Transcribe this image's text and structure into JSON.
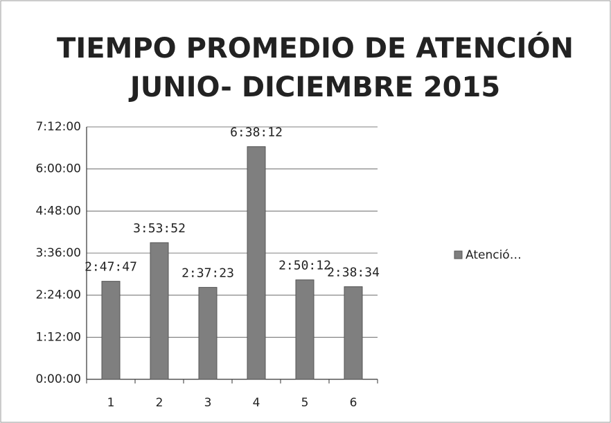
{
  "chart_data": {
    "type": "bar",
    "title": [
      "TIEMPO PROMEDIO DE ATENCIÓN",
      "JUNIO- DICIEMBRE 2015"
    ],
    "categories": [
      "1",
      "2",
      "3",
      "4",
      "5",
      "6"
    ],
    "series": [
      {
        "name": "Atenció…",
        "color": "#7f7f7f",
        "values": [
          10067,
          14032,
          9443,
          23892,
          10212,
          9514
        ],
        "value_labels": [
          "2:47:47",
          "3:53:52",
          "2:37:23",
          "6:38:12",
          "2:50:12",
          "2:38:34"
        ]
      }
    ],
    "ylim": [
      0,
      25920
    ],
    "yticks": [
      {
        "value": 0,
        "label": "0:00:00"
      },
      {
        "value": 4320,
        "label": "1:12:00"
      },
      {
        "value": 8640,
        "label": "2:24:00"
      },
      {
        "value": 12960,
        "label": "3:36:00"
      },
      {
        "value": 17280,
        "label": "4:48:00"
      },
      {
        "value": 21600,
        "label": "6:00:00"
      },
      {
        "value": 25920,
        "label": "7:12:00"
      }
    ],
    "grid": true,
    "legend": "right"
  }
}
